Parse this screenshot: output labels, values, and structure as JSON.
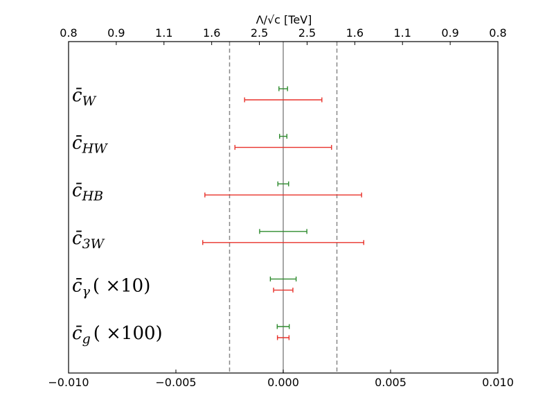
{
  "chart_data": {
    "type": "errorbar",
    "top_axis_label": "Λ/√c [TeV]",
    "top_ticks": [
      "0.8",
      "0.9",
      "1.1",
      "1.6",
      "2.5",
      "2.5",
      "1.6",
      "1.1",
      "0.9",
      "0.8"
    ],
    "xlim": [
      -0.01,
      0.01
    ],
    "xticks": [
      -0.01,
      -0.005,
      0.0,
      0.005,
      0.01
    ],
    "xtick_labels": [
      "−0.010",
      "−0.005",
      "0.000",
      "0.005",
      "0.010"
    ],
    "reference_lines": [
      {
        "x": -0.0025,
        "style": "dashed",
        "color": "#888888"
      },
      {
        "x": 0.0,
        "style": "solid",
        "color": "#888888"
      },
      {
        "x": 0.0025,
        "style": "dashed",
        "color": "#888888"
      }
    ],
    "series": [
      {
        "color": "#2e8b2e"
      },
      {
        "color": "#e8312a"
      }
    ],
    "rows": [
      {
        "label": "c̄W",
        "label_main": "c̄",
        "label_sub": "W",
        "label_suffix": "",
        "intervals": [
          [
            -0.0002,
            0.0002
          ],
          [
            -0.0018,
            0.0018
          ]
        ]
      },
      {
        "label": "c̄HW",
        "label_main": "c̄",
        "label_sub": "HW",
        "label_suffix": "",
        "intervals": [
          [
            -0.00017,
            0.00017
          ],
          [
            -0.00225,
            0.00225
          ]
        ]
      },
      {
        "label": "c̄HB",
        "label_main": "c̄",
        "label_sub": "HB",
        "label_suffix": "",
        "intervals": [
          [
            -0.00025,
            0.00025
          ],
          [
            -0.00365,
            0.00365
          ]
        ]
      },
      {
        "label": "c̄3W",
        "label_main": "c̄",
        "label_sub": "3W",
        "label_suffix": "",
        "intervals": [
          [
            -0.0011,
            0.0011
          ],
          [
            -0.00375,
            0.00375
          ]
        ]
      },
      {
        "label": "c̄γ ( ×10)",
        "label_main": "c̄",
        "label_sub": "γ",
        "label_suffix": "( ×10)",
        "intervals": [
          [
            -0.0006,
            0.0006
          ],
          [
            -0.00045,
            0.00045
          ]
        ]
      },
      {
        "label": "c̄g ( ×100)",
        "label_main": "c̄",
        "label_sub": "g",
        "label_suffix": "( ×100)",
        "intervals": [
          [
            -0.00028,
            0.00028
          ],
          [
            -0.00027,
            0.00027
          ]
        ]
      }
    ]
  }
}
